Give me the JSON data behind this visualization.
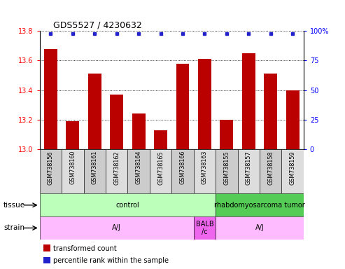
{
  "title": "GDS5527 / 4230632",
  "samples": [
    "GSM738156",
    "GSM738160",
    "GSM738161",
    "GSM738162",
    "GSM738164",
    "GSM738165",
    "GSM738166",
    "GSM738163",
    "GSM738155",
    "GSM738157",
    "GSM738158",
    "GSM738159"
  ],
  "bar_values": [
    13.68,
    13.19,
    13.51,
    13.37,
    13.24,
    13.13,
    13.58,
    13.61,
    13.2,
    13.65,
    13.51,
    13.4
  ],
  "ylim_left": [
    13.0,
    13.8
  ],
  "ylim_right": [
    0,
    100
  ],
  "yticks_left": [
    13.0,
    13.2,
    13.4,
    13.6,
    13.8
  ],
  "yticks_right": [
    0,
    25,
    50,
    75,
    100
  ],
  "bar_color": "#bb0000",
  "dot_color": "#2222cc",
  "grid_color": "#000000",
  "tissue_groups": [
    {
      "label": "control",
      "start": 0,
      "end": 8,
      "color": "#bbffbb"
    },
    {
      "label": "rhabdomyosarcoma tumor",
      "start": 8,
      "end": 12,
      "color": "#55cc55"
    }
  ],
  "strain_groups": [
    {
      "label": "A/J",
      "start": 0,
      "end": 7,
      "color": "#ffbbff"
    },
    {
      "label": "BALB\n/c",
      "start": 7,
      "end": 8,
      "color": "#ee66ee"
    },
    {
      "label": "A/J",
      "start": 8,
      "end": 12,
      "color": "#ffbbff"
    }
  ],
  "sample_box_colors": [
    "#cccccc",
    "#dddddd",
    "#cccccc",
    "#dddddd",
    "#cccccc",
    "#dddddd",
    "#cccccc",
    "#dddddd",
    "#cccccc",
    "#dddddd",
    "#cccccc",
    "#dddddd"
  ]
}
